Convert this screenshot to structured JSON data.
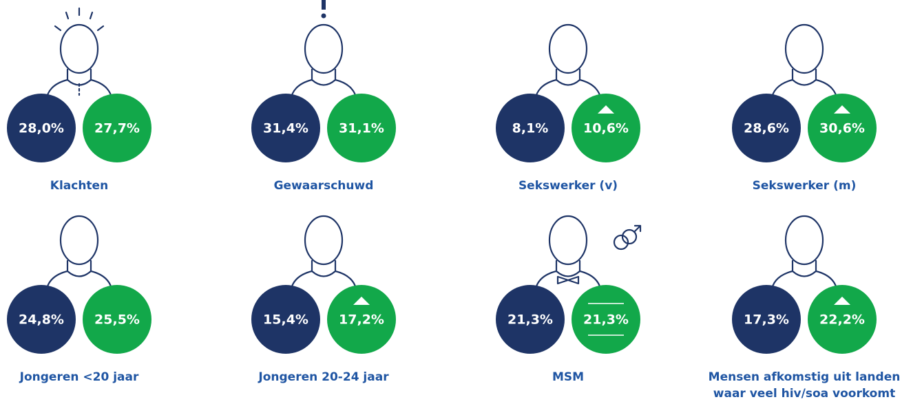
{
  "items": [
    {
      "label": [
        "Klachten"
      ],
      "values": [
        "28,0%",
        "27,7%"
      ]
    },
    {
      "label": [
        "Gewaarschuwd"
      ],
      "values": [
        "31,4%",
        "31,1%"
      ]
    },
    {
      "label": [
        "Sekswerker (v)"
      ],
      "values": [
        "8,1%",
        "10,6%"
      ]
    },
    {
      "label": [
        "Sekswerker (m)"
      ],
      "values": [
        "28,6%",
        "30,6%"
      ]
    },
    {
      "label": [
        "Jongeren <20 jaar"
      ],
      "values": [
        "24,8%",
        "25,5%"
      ]
    },
    {
      "label": [
        "Jongeren 20-24 jaar"
      ],
      "values": [
        "15,4%",
        "17,2%"
      ]
    },
    {
      "label": [
        "MSM"
      ],
      "values": [
        "21,3%",
        "21,3%"
      ]
    },
    {
      "label": [
        "Mensen afkomstig uit landen",
        "waar veel hiv/soa voorkomt"
      ],
      "values": [
        "17,3%",
        "22,2%"
      ]
    }
  ]
}
